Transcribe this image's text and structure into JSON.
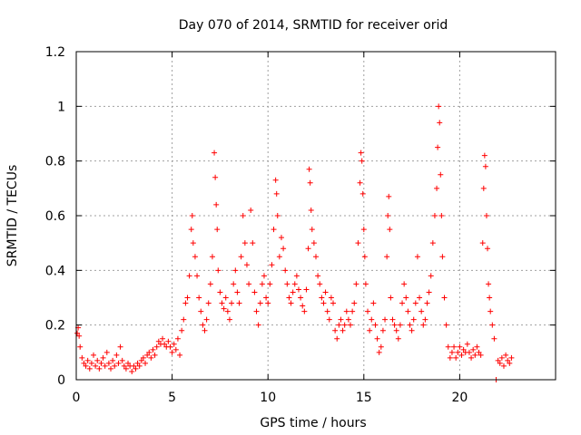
{
  "chart_data": {
    "type": "scatter",
    "title": "Day 070 of 2014, SRMTID for receiver orid",
    "xlabel": "GPS time / hours",
    "ylabel": "SRMTID / TECUs",
    "xlim": [
      0,
      25
    ],
    "ylim": [
      0,
      1.2
    ],
    "x_ticks": [
      0,
      5,
      10,
      15,
      20
    ],
    "x_tick_labels": [
      "0",
      "5",
      "10",
      "15",
      "20"
    ],
    "y_ticks": [
      0,
      0.2,
      0.4,
      0.6,
      0.8,
      1.0,
      1.2
    ],
    "y_tick_labels": [
      "0",
      "0.2",
      "0.4",
      "0.6",
      "0.8",
      "1",
      "1.2"
    ],
    "grid": true,
    "marker": "+",
    "color": "#ff0000",
    "series": [
      {
        "name": "SRMTID",
        "points": [
          [
            0.05,
            0.17
          ],
          [
            0.1,
            0.19
          ],
          [
            0.15,
            0.16
          ],
          [
            0.2,
            0.12
          ],
          [
            0.3,
            0.08
          ],
          [
            0.4,
            0.06
          ],
          [
            0.5,
            0.05
          ],
          [
            0.6,
            0.07
          ],
          [
            0.7,
            0.04
          ],
          [
            0.8,
            0.06
          ],
          [
            0.9,
            0.09
          ],
          [
            1.0,
            0.05
          ],
          [
            1.1,
            0.07
          ],
          [
            1.2,
            0.04
          ],
          [
            1.3,
            0.06
          ],
          [
            1.4,
            0.08
          ],
          [
            1.5,
            0.05
          ],
          [
            1.6,
            0.1
          ],
          [
            1.7,
            0.06
          ],
          [
            1.8,
            0.04
          ],
          [
            1.9,
            0.07
          ],
          [
            2.0,
            0.05
          ],
          [
            2.1,
            0.09
          ],
          [
            2.2,
            0.06
          ],
          [
            2.3,
            0.12
          ],
          [
            2.4,
            0.07
          ],
          [
            2.5,
            0.05
          ],
          [
            2.6,
            0.04
          ],
          [
            2.7,
            0.06
          ],
          [
            2.8,
            0.05
          ],
          [
            2.9,
            0.03
          ],
          [
            3.0,
            0.05
          ],
          [
            3.1,
            0.04
          ],
          [
            3.2,
            0.06
          ],
          [
            3.3,
            0.05
          ],
          [
            3.4,
            0.07
          ],
          [
            3.5,
            0.08
          ],
          [
            3.6,
            0.06
          ],
          [
            3.7,
            0.09
          ],
          [
            3.8,
            0.1
          ],
          [
            3.9,
            0.08
          ],
          [
            4.0,
            0.11
          ],
          [
            4.1,
            0.09
          ],
          [
            4.2,
            0.12
          ],
          [
            4.3,
            0.14
          ],
          [
            4.4,
            0.13
          ],
          [
            4.5,
            0.15
          ],
          [
            4.6,
            0.13
          ],
          [
            4.7,
            0.12
          ],
          [
            4.8,
            0.14
          ],
          [
            4.9,
            0.12
          ],
          [
            5.0,
            0.1
          ],
          [
            5.1,
            0.13
          ],
          [
            5.2,
            0.11
          ],
          [
            5.3,
            0.15
          ],
          [
            5.4,
            0.09
          ],
          [
            5.5,
            0.18
          ],
          [
            5.6,
            0.22
          ],
          [
            5.7,
            0.28
          ],
          [
            5.8,
            0.3
          ],
          [
            5.9,
            0.38
          ],
          [
            6.0,
            0.55
          ],
          [
            6.05,
            0.6
          ],
          [
            6.1,
            0.5
          ],
          [
            6.2,
            0.45
          ],
          [
            6.3,
            0.38
          ],
          [
            6.4,
            0.3
          ],
          [
            6.5,
            0.25
          ],
          [
            6.6,
            0.2
          ],
          [
            6.7,
            0.18
          ],
          [
            6.8,
            0.22
          ],
          [
            6.9,
            0.28
          ],
          [
            7.0,
            0.35
          ],
          [
            7.1,
            0.45
          ],
          [
            7.2,
            0.83
          ],
          [
            7.25,
            0.74
          ],
          [
            7.3,
            0.64
          ],
          [
            7.35,
            0.55
          ],
          [
            7.4,
            0.4
          ],
          [
            7.5,
            0.32
          ],
          [
            7.6,
            0.28
          ],
          [
            7.7,
            0.26
          ],
          [
            7.8,
            0.3
          ],
          [
            7.9,
            0.25
          ],
          [
            8.0,
            0.22
          ],
          [
            8.1,
            0.28
          ],
          [
            8.2,
            0.35
          ],
          [
            8.3,
            0.4
          ],
          [
            8.4,
            0.32
          ],
          [
            8.5,
            0.28
          ],
          [
            8.6,
            0.45
          ],
          [
            8.7,
            0.6
          ],
          [
            8.8,
            0.5
          ],
          [
            8.9,
            0.42
          ],
          [
            9.0,
            0.35
          ],
          [
            9.1,
            0.62
          ],
          [
            9.2,
            0.5
          ],
          [
            9.3,
            0.32
          ],
          [
            9.4,
            0.25
          ],
          [
            9.5,
            0.2
          ],
          [
            9.6,
            0.28
          ],
          [
            9.7,
            0.35
          ],
          [
            9.8,
            0.38
          ],
          [
            9.9,
            0.3
          ],
          [
            10.0,
            0.28
          ],
          [
            10.1,
            0.35
          ],
          [
            10.2,
            0.42
          ],
          [
            10.3,
            0.55
          ],
          [
            10.4,
            0.73
          ],
          [
            10.45,
            0.68
          ],
          [
            10.5,
            0.6
          ],
          [
            10.6,
            0.45
          ],
          [
            10.7,
            0.52
          ],
          [
            10.8,
            0.48
          ],
          [
            10.9,
            0.4
          ],
          [
            11.0,
            0.35
          ],
          [
            11.1,
            0.3
          ],
          [
            11.2,
            0.28
          ],
          [
            11.3,
            0.32
          ],
          [
            11.4,
            0.35
          ],
          [
            11.5,
            0.38
          ],
          [
            11.6,
            0.33
          ],
          [
            11.7,
            0.3
          ],
          [
            11.8,
            0.27
          ],
          [
            11.9,
            0.25
          ],
          [
            12.0,
            0.33
          ],
          [
            12.1,
            0.48
          ],
          [
            12.15,
            0.77
          ],
          [
            12.2,
            0.72
          ],
          [
            12.25,
            0.62
          ],
          [
            12.3,
            0.55
          ],
          [
            12.4,
            0.5
          ],
          [
            12.5,
            0.45
          ],
          [
            12.6,
            0.38
          ],
          [
            12.7,
            0.35
          ],
          [
            12.8,
            0.3
          ],
          [
            12.9,
            0.28
          ],
          [
            13.0,
            0.32
          ],
          [
            13.1,
            0.25
          ],
          [
            13.2,
            0.22
          ],
          [
            13.3,
            0.3
          ],
          [
            13.4,
            0.28
          ],
          [
            13.5,
            0.18
          ],
          [
            13.6,
            0.15
          ],
          [
            13.7,
            0.2
          ],
          [
            13.8,
            0.22
          ],
          [
            13.9,
            0.18
          ],
          [
            14.0,
            0.2
          ],
          [
            14.1,
            0.25
          ],
          [
            14.2,
            0.22
          ],
          [
            14.3,
            0.2
          ],
          [
            14.4,
            0.25
          ],
          [
            14.5,
            0.28
          ],
          [
            14.6,
            0.35
          ],
          [
            14.7,
            0.5
          ],
          [
            14.8,
            0.72
          ],
          [
            14.85,
            0.83
          ],
          [
            14.9,
            0.8
          ],
          [
            14.95,
            0.68
          ],
          [
            15.0,
            0.55
          ],
          [
            15.05,
            0.45
          ],
          [
            15.1,
            0.35
          ],
          [
            15.2,
            0.25
          ],
          [
            15.3,
            0.18
          ],
          [
            15.4,
            0.22
          ],
          [
            15.5,
            0.28
          ],
          [
            15.6,
            0.2
          ],
          [
            15.7,
            0.15
          ],
          [
            15.8,
            0.1
          ],
          [
            15.9,
            0.12
          ],
          [
            16.0,
            0.18
          ],
          [
            16.1,
            0.22
          ],
          [
            16.2,
            0.45
          ],
          [
            16.25,
            0.6
          ],
          [
            16.3,
            0.67
          ],
          [
            16.35,
            0.55
          ],
          [
            16.4,
            0.3
          ],
          [
            16.5,
            0.22
          ],
          [
            16.6,
            0.2
          ],
          [
            16.7,
            0.18
          ],
          [
            16.8,
            0.15
          ],
          [
            16.9,
            0.2
          ],
          [
            17.0,
            0.28
          ],
          [
            17.1,
            0.35
          ],
          [
            17.2,
            0.3
          ],
          [
            17.3,
            0.25
          ],
          [
            17.4,
            0.2
          ],
          [
            17.5,
            0.18
          ],
          [
            17.6,
            0.22
          ],
          [
            17.7,
            0.28
          ],
          [
            17.8,
            0.45
          ],
          [
            17.9,
            0.3
          ],
          [
            18.0,
            0.25
          ],
          [
            18.1,
            0.2
          ],
          [
            18.2,
            0.22
          ],
          [
            18.3,
            0.28
          ],
          [
            18.4,
            0.32
          ],
          [
            18.5,
            0.38
          ],
          [
            18.6,
            0.5
          ],
          [
            18.7,
            0.6
          ],
          [
            18.8,
            0.7
          ],
          [
            18.85,
            0.85
          ],
          [
            18.9,
            1.0
          ],
          [
            18.95,
            0.94
          ],
          [
            19.0,
            0.75
          ],
          [
            19.05,
            0.6
          ],
          [
            19.1,
            0.45
          ],
          [
            19.2,
            0.3
          ],
          [
            19.3,
            0.2
          ],
          [
            19.4,
            0.12
          ],
          [
            19.5,
            0.08
          ],
          [
            19.6,
            0.1
          ],
          [
            19.7,
            0.12
          ],
          [
            19.8,
            0.08
          ],
          [
            19.9,
            0.1
          ],
          [
            20.0,
            0.12
          ],
          [
            20.1,
            0.09
          ],
          [
            20.2,
            0.11
          ],
          [
            20.3,
            0.1
          ],
          [
            20.4,
            0.13
          ],
          [
            20.5,
            0.1
          ],
          [
            20.6,
            0.08
          ],
          [
            20.7,
            0.11
          ],
          [
            20.8,
            0.09
          ],
          [
            20.9,
            0.12
          ],
          [
            21.0,
            0.1
          ],
          [
            21.1,
            0.09
          ],
          [
            21.2,
            0.5
          ],
          [
            21.25,
            0.7
          ],
          [
            21.3,
            0.82
          ],
          [
            21.35,
            0.78
          ],
          [
            21.4,
            0.6
          ],
          [
            21.45,
            0.48
          ],
          [
            21.5,
            0.35
          ],
          [
            21.55,
            0.3
          ],
          [
            21.6,
            0.25
          ],
          [
            21.7,
            0.2
          ],
          [
            21.8,
            0.15
          ],
          [
            21.9,
            0.0
          ],
          [
            22.0,
            0.07
          ],
          [
            22.1,
            0.06
          ],
          [
            22.2,
            0.08
          ],
          [
            22.3,
            0.05
          ],
          [
            22.4,
            0.09
          ],
          [
            22.5,
            0.07
          ],
          [
            22.6,
            0.06
          ],
          [
            22.7,
            0.08
          ]
        ]
      }
    ]
  }
}
